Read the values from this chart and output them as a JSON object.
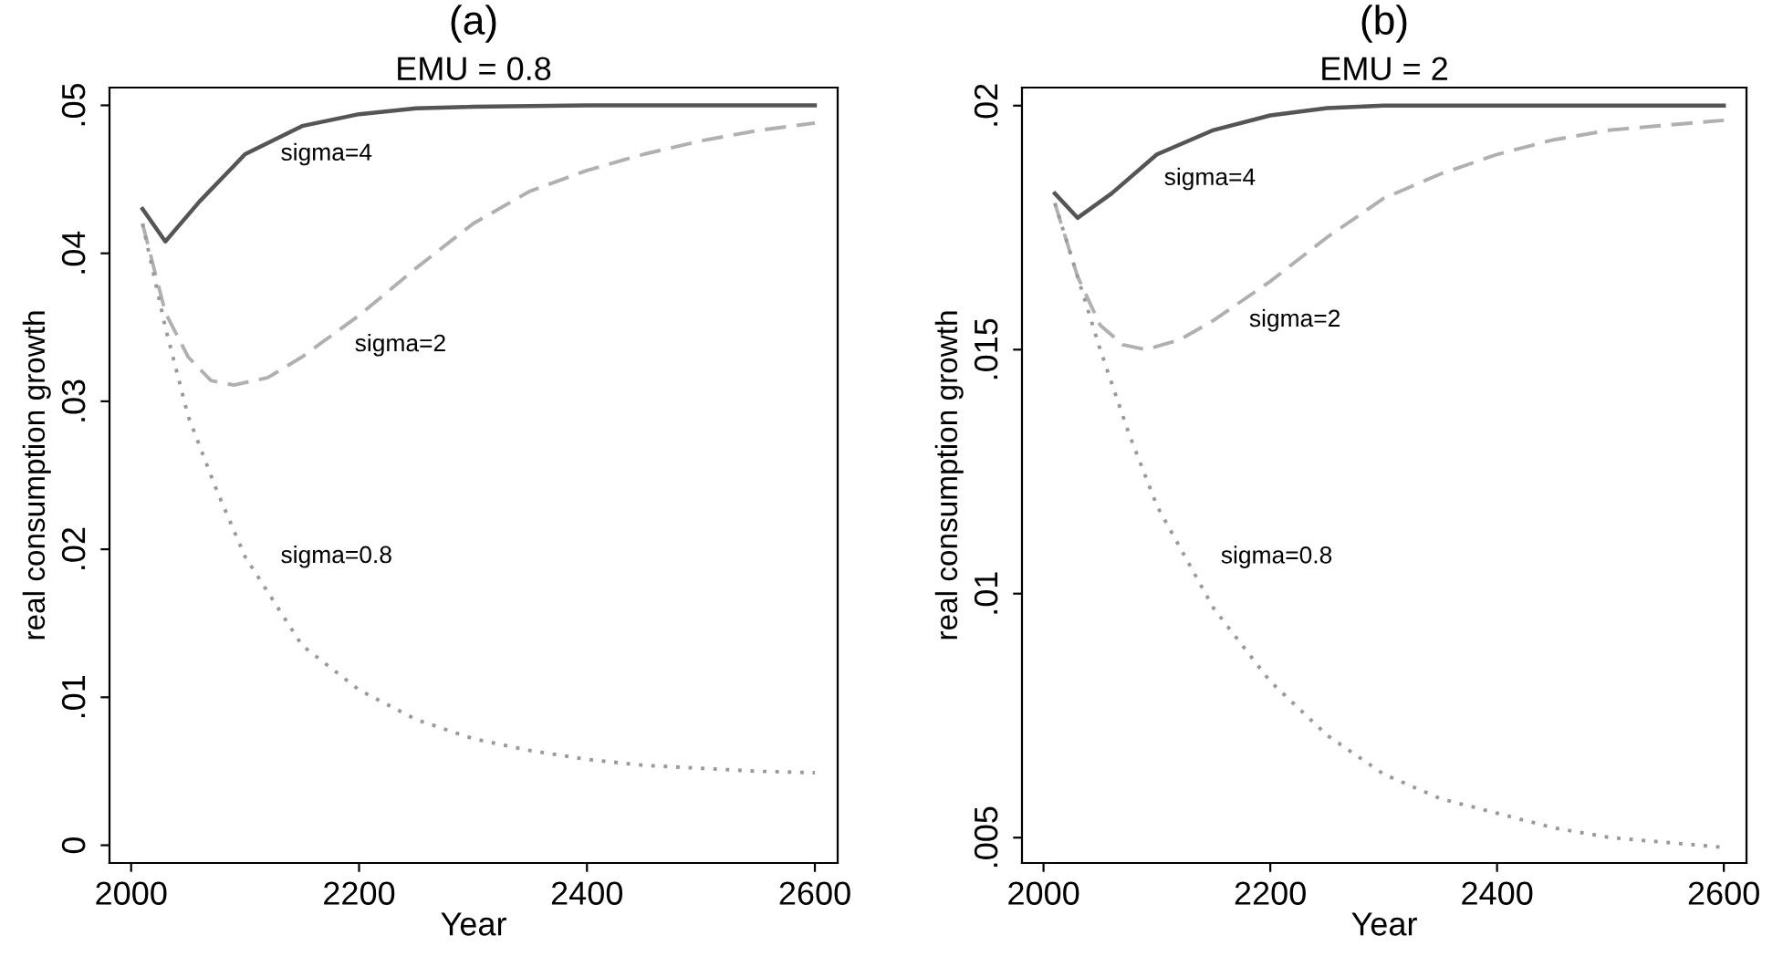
{
  "chart_data": [
    {
      "type": "line",
      "title": "(a)",
      "subtitle": "EMU = 0.8",
      "xlabel": "Year",
      "ylabel": "real consumption growth",
      "xlim": [
        1981,
        2620
      ],
      "xticks": [
        2000,
        2200,
        2400,
        2600
      ],
      "ylim": [
        -0.0012,
        0.0512
      ],
      "yticks": [
        {
          "value": 0,
          "label": "0"
        },
        {
          "value": 0.01,
          "label": ".01"
        },
        {
          "value": 0.02,
          "label": ".02"
        },
        {
          "value": 0.03,
          "label": ".03"
        },
        {
          "value": 0.04,
          "label": ".04"
        },
        {
          "value": 0.05,
          "label": ".05"
        }
      ],
      "grid": false,
      "legend": false,
      "series": [
        {
          "color": "#555555",
          "line_style": "solid",
          "x": [
            2010,
            2030,
            2060,
            2100,
            2150,
            2200,
            2250,
            2300,
            2400,
            2600
          ],
          "values": [
            0.043,
            0.0408,
            0.0435,
            0.0467,
            0.0486,
            0.0494,
            0.0498,
            0.0499,
            0.05,
            0.05
          ]
        },
        {
          "color": "#b0b0b0",
          "line_style": "dashed",
          "x": [
            2010,
            2030,
            2050,
            2070,
            2090,
            2120,
            2150,
            2200,
            2250,
            2300,
            2350,
            2400,
            2450,
            2500,
            2550,
            2600
          ],
          "values": [
            0.042,
            0.036,
            0.033,
            0.0314,
            0.0311,
            0.0316,
            0.033,
            0.0358,
            0.039,
            0.042,
            0.0442,
            0.0456,
            0.0467,
            0.0476,
            0.0483,
            0.0488
          ]
        },
        {
          "color": "#999999",
          "line_style": "dotted",
          "x": [
            2010,
            2030,
            2050,
            2075,
            2100,
            2150,
            2200,
            2250,
            2300,
            2350,
            2400,
            2450,
            2500,
            2550,
            2600
          ],
          "values": [
            0.042,
            0.035,
            0.029,
            0.024,
            0.0195,
            0.0135,
            0.0105,
            0.0085,
            0.0072,
            0.0064,
            0.0058,
            0.0054,
            0.0052,
            0.005,
            0.0049
          ]
        }
      ],
      "annotations": [
        {
          "text": "sigma=4",
          "x": 2100,
          "y": 0.0467
        },
        {
          "text": "sigma=2",
          "x": 2165,
          "y": 0.0338
        },
        {
          "text": "sigma=0.8",
          "x": 2100,
          "y": 0.0195
        }
      ]
    },
    {
      "type": "line",
      "title": "(b)",
      "subtitle": "EMU = 2",
      "xlabel": "Year",
      "ylabel": "real consumption growth",
      "xlim": [
        1981,
        2620
      ],
      "xticks": [
        2000,
        2200,
        2400,
        2600
      ],
      "ylim": [
        0.00448,
        0.02037
      ],
      "yticks": [
        {
          "value": 0.005,
          "label": ".005"
        },
        {
          "value": 0.01,
          "label": ".01"
        },
        {
          "value": 0.015,
          "label": ".015"
        },
        {
          "value": 0.02,
          "label": ".02"
        }
      ],
      "grid": false,
      "legend": false,
      "series": [
        {
          "color": "#555555",
          "line_style": "solid",
          "x": [
            2010,
            2030,
            2060,
            2100,
            2150,
            2200,
            2250,
            2300,
            2600
          ],
          "values": [
            0.0182,
            0.0177,
            0.0182,
            0.019,
            0.0195,
            0.0198,
            0.01995,
            0.02,
            0.02
          ]
        },
        {
          "color": "#b0b0b0",
          "line_style": "dashed",
          "x": [
            2010,
            2030,
            2050,
            2070,
            2090,
            2120,
            2150,
            2200,
            2250,
            2300,
            2350,
            2400,
            2450,
            2500,
            2550,
            2600
          ],
          "values": [
            0.018,
            0.0165,
            0.0155,
            0.0151,
            0.015,
            0.0152,
            0.0156,
            0.0164,
            0.0173,
            0.0181,
            0.0186,
            0.019,
            0.0193,
            0.0195,
            0.0196,
            0.0197
          ]
        },
        {
          "color": "#999999",
          "line_style": "dotted",
          "x": [
            2010,
            2030,
            2050,
            2075,
            2100,
            2150,
            2200,
            2250,
            2300,
            2350,
            2400,
            2450,
            2500,
            2550,
            2600
          ],
          "values": [
            0.018,
            0.0165,
            0.015,
            0.0133,
            0.0118,
            0.0097,
            0.0082,
            0.0071,
            0.0063,
            0.0058,
            0.0055,
            0.0052,
            0.005,
            0.0049,
            0.0048
          ]
        }
      ],
      "annotations": [
        {
          "text": "sigma=4",
          "x": 2075,
          "y": 0.0185
        },
        {
          "text": "sigma=2",
          "x": 2150,
          "y": 0.0156
        },
        {
          "text": "sigma=0.8",
          "x": 2125,
          "y": 0.01075
        }
      ]
    }
  ]
}
